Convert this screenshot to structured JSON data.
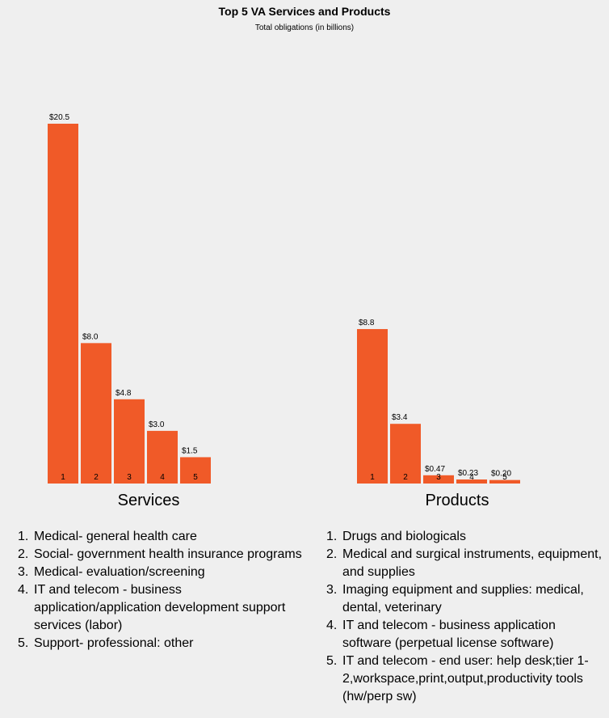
{
  "title": "Top 5 VA Services and Products",
  "subtitle": "Total obligations (in billions)",
  "bar_color": "#F05A28",
  "chart_data": [
    {
      "type": "bar",
      "xlabel": "Services",
      "categories": [
        "1",
        "2",
        "3",
        "4",
        "5"
      ],
      "values": [
        20.5,
        8.0,
        4.8,
        3.0,
        1.5
      ],
      "data_labels": [
        "$20.5",
        "$8.0",
        "$4.8",
        "$3.0",
        "$1.5"
      ],
      "legend_items": [
        "Medical- general health care",
        "Social- government health insurance programs",
        "Medical- evaluation/screening",
        "IT and telecom - business application/application development support services (labor)",
        "Support- professional: other"
      ]
    },
    {
      "type": "bar",
      "xlabel": "Products",
      "categories": [
        "1",
        "2",
        "3",
        "4",
        "5"
      ],
      "values": [
        8.8,
        3.4,
        0.47,
        0.23,
        0.2
      ],
      "data_labels": [
        "$8.8",
        "$3.4",
        "$0.47",
        "$0.23",
        "$0.20"
      ],
      "legend_items": [
        "Drugs and biologicals",
        "Medical and surgical instruments, equipment, and supplies",
        "Imaging equipment and supplies: medical, dental, veterinary",
        "IT and telecom - business application software (perpetual license software)",
        "IT and telecom - end user: help desk;tier 1-2,workspace,print,output,productivity tools (hw/perp sw)"
      ]
    }
  ]
}
